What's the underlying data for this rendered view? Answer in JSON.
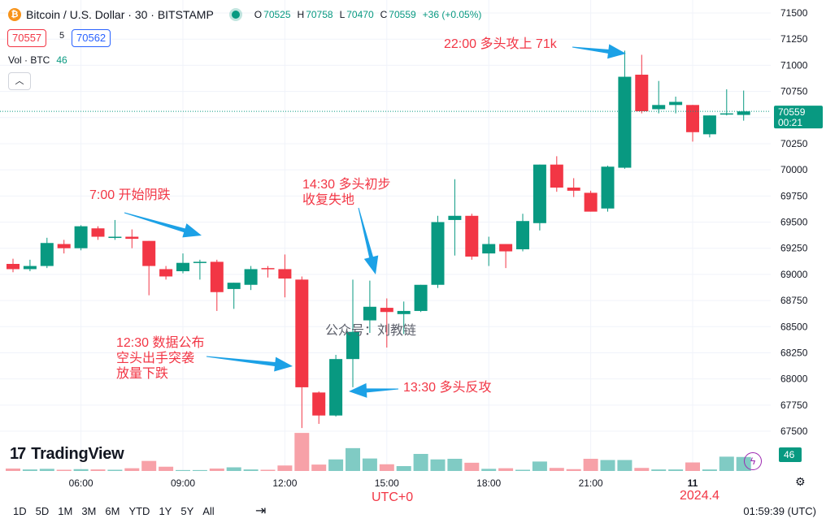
{
  "header": {
    "symbol_icon": "bitcoin-icon",
    "title": "Bitcoin / U.S. Dollar · 30 · BITSTAMP",
    "ohlc": [
      {
        "k": "O",
        "v": "70525"
      },
      {
        "k": "H",
        "v": "70758"
      },
      {
        "k": "L",
        "v": "70470"
      },
      {
        "k": "C",
        "v": "70559"
      }
    ],
    "change": "+36 (+0.05%)"
  },
  "prices": {
    "bid": "70557",
    "spread": "5",
    "ask": "70562"
  },
  "volume_legend": {
    "label": "Vol · BTC",
    "value": "46"
  },
  "annotations": {
    "a1": "7:00 开始阴跌",
    "a2_l1": "14:30 多头初步",
    "a2_l2": "收复失地",
    "a3_l1": "12:30 数据公布",
    "a3_l2": "空头出手突袭",
    "a3_l3": "放量下跌",
    "a4": "13:30 多头反攻",
    "a5": "22:00 多头攻上 71k",
    "utc": "UTC+0",
    "date": "2024.4"
  },
  "watermark": "公众号：刘教链",
  "logo": {
    "text": "TradingView",
    "mark": "17"
  },
  "bottom": {
    "ranges": [
      "1D",
      "5D",
      "1M",
      "3M",
      "6M",
      "YTD",
      "1Y",
      "5Y",
      "All"
    ],
    "clock": "01:59:39 (UTC)"
  },
  "colors": {
    "up": "#089981",
    "down": "#f23645",
    "up_vol": "#80cbc4",
    "down_vol": "#f7a1a8",
    "arrow": "#1ca1e6",
    "grid": "#f0f3fa"
  },
  "chart_data": {
    "type": "candlestick",
    "interval": "30",
    "x_tick_labels": [
      "06:00",
      "09:00",
      "12:00",
      "15:00",
      "18:00",
      "21:00",
      "11"
    ],
    "y_tick_labels": [
      "71500",
      "71250",
      "71000",
      "70750",
      "70500",
      "70250",
      "70000",
      "69750",
      "69500",
      "69250",
      "69000",
      "68750",
      "68500",
      "68250",
      "68000",
      "67750",
      "67500"
    ],
    "ylim": [
      67300,
      71550
    ],
    "last_price": {
      "value": "70559",
      "countdown": "00:21"
    },
    "volume_last": "46",
    "grid": true,
    "candles": [
      {
        "t": "04:30",
        "o": 69100,
        "h": 69150,
        "l": 69020,
        "c": 69050,
        "vol": 8
      },
      {
        "t": "05:00",
        "o": 69050,
        "h": 69140,
        "l": 69030,
        "c": 69080,
        "vol": 5
      },
      {
        "t": "05:30",
        "o": 69080,
        "h": 69350,
        "l": 69060,
        "c": 69300,
        "vol": 7
      },
      {
        "t": "06:00",
        "o": 69290,
        "h": 69330,
        "l": 69200,
        "c": 69250,
        "vol": 4
      },
      {
        "t": "06:30",
        "o": 69250,
        "h": 69470,
        "l": 69230,
        "c": 69460,
        "vol": 6
      },
      {
        "t": "07:00",
        "o": 69440,
        "h": 69460,
        "l": 69330,
        "c": 69360,
        "vol": 5
      },
      {
        "t": "07:30",
        "o": 69360,
        "h": 69520,
        "l": 69330,
        "c": 69360,
        "vol": 4
      },
      {
        "t": "08:00",
        "o": 69360,
        "h": 69430,
        "l": 69250,
        "c": 69340,
        "vol": 9
      },
      {
        "t": "08:30",
        "o": 69320,
        "h": 69300,
        "l": 68800,
        "c": 69080,
        "vol": 33
      },
      {
        "t": "09:00",
        "o": 69050,
        "h": 69080,
        "l": 68950,
        "c": 68980,
        "vol": 14
      },
      {
        "t": "09:30",
        "o": 69030,
        "h": 69200,
        "l": 69010,
        "c": 69110,
        "vol": 3
      },
      {
        "t": "10:00",
        "o": 69110,
        "h": 69140,
        "l": 68950,
        "c": 69120,
        "vol": 3
      },
      {
        "t": "10:30",
        "o": 69120,
        "h": 69140,
        "l": 68650,
        "c": 68830,
        "vol": 8
      },
      {
        "t": "11:00",
        "o": 68860,
        "h": 68920,
        "l": 68670,
        "c": 68920,
        "vol": 12
      },
      {
        "t": "11:30",
        "o": 68900,
        "h": 69080,
        "l": 68850,
        "c": 69050,
        "vol": 5
      },
      {
        "t": "12:00",
        "o": 69060,
        "h": 69080,
        "l": 68970,
        "c": 69050,
        "vol": 4
      },
      {
        "t": "12:30",
        "o": 69050,
        "h": 69190,
        "l": 68780,
        "c": 68960,
        "vol": 18
      },
      {
        "t": "13:00",
        "o": 68950,
        "h": 68980,
        "l": 67530,
        "c": 67920,
        "vol": 125
      },
      {
        "t": "13:30",
        "o": 67870,
        "h": 67880,
        "l": 67570,
        "c": 67650,
        "vol": 21
      },
      {
        "t": "14:00",
        "o": 67650,
        "h": 68230,
        "l": 67640,
        "c": 68190,
        "vol": 38
      },
      {
        "t": "14:30",
        "o": 68190,
        "h": 68950,
        "l": 67920,
        "c": 68450,
        "vol": 75
      },
      {
        "t": "15:00",
        "o": 68560,
        "h": 68940,
        "l": 68440,
        "c": 68690,
        "vol": 41
      },
      {
        "t": "15:30",
        "o": 68680,
        "h": 68770,
        "l": 68300,
        "c": 68640,
        "vol": 22
      },
      {
        "t": "16:00",
        "o": 68620,
        "h": 68740,
        "l": 68430,
        "c": 68650,
        "vol": 16
      },
      {
        "t": "16:30",
        "o": 68650,
        "h": 68890,
        "l": 68640,
        "c": 68900,
        "vol": 56
      },
      {
        "t": "17:00",
        "o": 68900,
        "h": 69560,
        "l": 68870,
        "c": 69500,
        "vol": 38
      },
      {
        "t": "17:30",
        "o": 69520,
        "h": 69910,
        "l": 69180,
        "c": 69560,
        "vol": 40
      },
      {
        "t": "18:00",
        "o": 69560,
        "h": 69580,
        "l": 69140,
        "c": 69170,
        "vol": 27
      },
      {
        "t": "18:30",
        "o": 69200,
        "h": 69360,
        "l": 69080,
        "c": 69290,
        "vol": 7
      },
      {
        "t": "19:00",
        "o": 69290,
        "h": 69280,
        "l": 69060,
        "c": 69220,
        "vol": 9
      },
      {
        "t": "19:30",
        "o": 69240,
        "h": 69580,
        "l": 69220,
        "c": 69510,
        "vol": 4
      },
      {
        "t": "20:00",
        "o": 69490,
        "h": 70050,
        "l": 69420,
        "c": 70050,
        "vol": 31
      },
      {
        "t": "20:30",
        "o": 70050,
        "h": 70130,
        "l": 69790,
        "c": 69830,
        "vol": 10
      },
      {
        "t": "21:00",
        "o": 69830,
        "h": 69920,
        "l": 69740,
        "c": 69800,
        "vol": 6
      },
      {
        "t": "21:30",
        "o": 69780,
        "h": 69800,
        "l": 69600,
        "c": 69600,
        "vol": 40
      },
      {
        "t": "22:00",
        "o": 69630,
        "h": 70040,
        "l": 69600,
        "c": 70030,
        "vol": 36
      },
      {
        "t": "22:30",
        "o": 70020,
        "h": 71140,
        "l": 70010,
        "c": 70890,
        "vol": 36
      },
      {
        "t": "23:00",
        "o": 70910,
        "h": 71100,
        "l": 70540,
        "c": 70560,
        "vol": 10
      },
      {
        "t": "23:30",
        "o": 70580,
        "h": 70850,
        "l": 70540,
        "c": 70620,
        "vol": 5
      },
      {
        "t": "00:00",
        "o": 70620,
        "h": 70700,
        "l": 70540,
        "c": 70650,
        "vol": 5
      },
      {
        "t": "00:30",
        "o": 70620,
        "h": 70620,
        "l": 70270,
        "c": 70360,
        "vol": 28
      },
      {
        "t": "01:00",
        "o": 70340,
        "h": 70520,
        "l": 70310,
        "c": 70520,
        "vol": 5
      },
      {
        "t": "01:30",
        "o": 70530,
        "h": 70770,
        "l": 70520,
        "c": 70540,
        "vol": 47
      },
      {
        "t": "02:00",
        "o": 70525,
        "h": 70758,
        "l": 70470,
        "c": 70559,
        "vol": 46
      }
    ]
  }
}
